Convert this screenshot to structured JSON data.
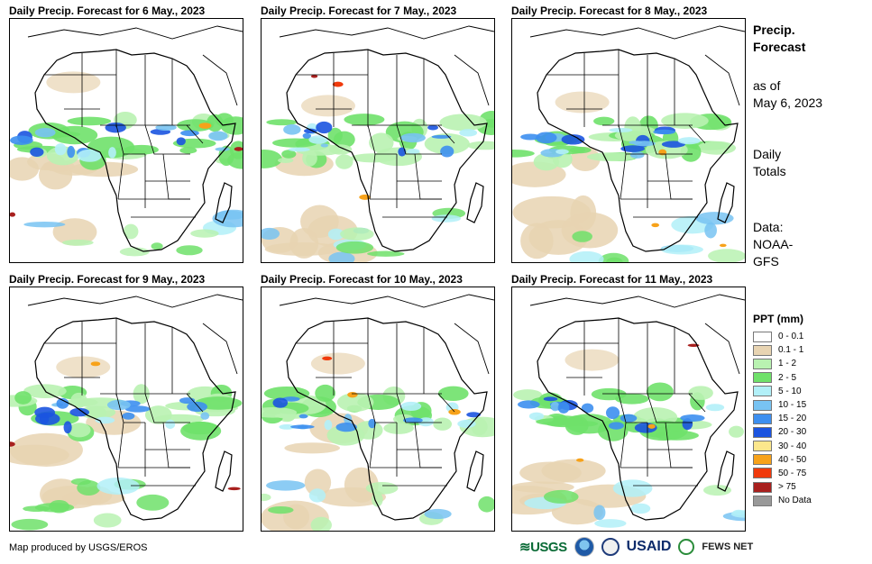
{
  "panels": [
    {
      "title": "Daily Precip. Forecast for 6 May., 2023"
    },
    {
      "title": "Daily Precip. Forecast for 7 May., 2023"
    },
    {
      "title": "Daily Precip. Forecast for 8 May., 2023"
    },
    {
      "title": "Daily Precip. Forecast for 9 May., 2023"
    },
    {
      "title": "Daily Precip. Forecast for 10 May., 2023"
    },
    {
      "title": "Daily Precip. Forecast for 11 May., 2023"
    }
  ],
  "side": {
    "heading_line1": "Precip.",
    "heading_line2": "Forecast",
    "asof_line1": "as of",
    "asof_line2": "May 6, 2023",
    "daily_line1": "Daily",
    "daily_line2": "Totals",
    "data_line1": "Data:",
    "data_line2": "NOAA-",
    "data_line3": "GFS"
  },
  "legend": {
    "title": "PPT (mm)",
    "items": [
      {
        "label": "0 - 0.1",
        "color": "#ffffff"
      },
      {
        "label": "0.1 - 1",
        "color": "#e8d4b2"
      },
      {
        "label": "1 - 2",
        "color": "#b9f2b1"
      },
      {
        "label": "2 - 5",
        "color": "#6fe16a"
      },
      {
        "label": "5 - 10",
        "color": "#b2f0f8"
      },
      {
        "label": "10 - 15",
        "color": "#78c3f2"
      },
      {
        "label": "15 - 20",
        "color": "#3d8ff0"
      },
      {
        "label": "20 - 30",
        "color": "#1b54e0"
      },
      {
        "label": "30 - 40",
        "color": "#fce78c"
      },
      {
        "label": "40 - 50",
        "color": "#f7a21a"
      },
      {
        "label": "50 - 75",
        "color": "#f03a0c"
      },
      {
        "label": "> 75",
        "color": "#a8201e"
      },
      {
        "label": "No Data",
        "color": "#999999"
      }
    ]
  },
  "footer": {
    "credit": "Map produced by USGS/EROS",
    "logo_usgs": "USGS",
    "logo_usaid": "USAID",
    "logo_fews": "FEWS NET"
  }
}
